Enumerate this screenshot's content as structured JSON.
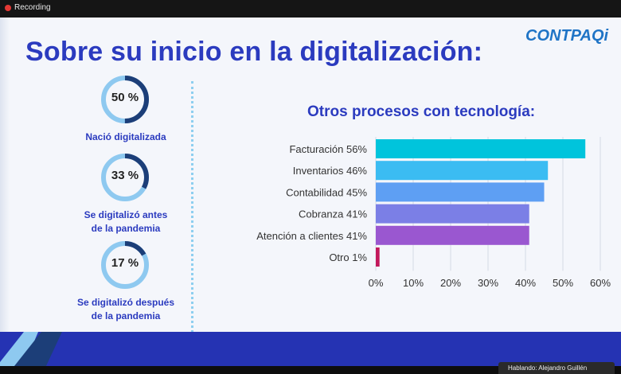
{
  "recording": {
    "label": "Recording"
  },
  "slide": {
    "title": "Sobre su inicio en la digitalización:",
    "logo": "CONTPAQi",
    "stats": [
      {
        "value": "50 %",
        "fraction": 0.5,
        "caption": "Nació digitalizada"
      },
      {
        "value": "33 %",
        "fraction": 0.33,
        "caption": "Se digitalizó antes\nde la pandemia"
      },
      {
        "value": "17 %",
        "fraction": 0.17,
        "caption": "Se digitalizó después\nde  la pandemia"
      }
    ],
    "colors": {
      "title": "#2b3bbf",
      "donut_fill": "#1c3e78",
      "donut_track": "#8ec9f0",
      "band": "#2533b3"
    }
  },
  "chart_data": {
    "type": "bar",
    "orientation": "horizontal",
    "title": "Otros procesos con tecnología:",
    "categories": [
      "Facturación 56%",
      "Inventarios 46%",
      "Contabilidad 45%",
      "Cobranza 41%",
      "Atención a clientes 41%",
      "Otro 1%"
    ],
    "values": [
      56,
      46,
      45,
      41,
      41,
      1
    ],
    "colors": [
      "#00c4dc",
      "#3bbcf2",
      "#5e9ff3",
      "#7b7fe6",
      "#9a57d0",
      "#c2185b"
    ],
    "xlim": [
      0,
      60
    ],
    "xticks": [
      "0%",
      "10%",
      "20%",
      "30%",
      "40%",
      "50%",
      "60%"
    ],
    "grid": true
  },
  "footer": {
    "speaker": "Hablando: Alejandro Guillén"
  }
}
